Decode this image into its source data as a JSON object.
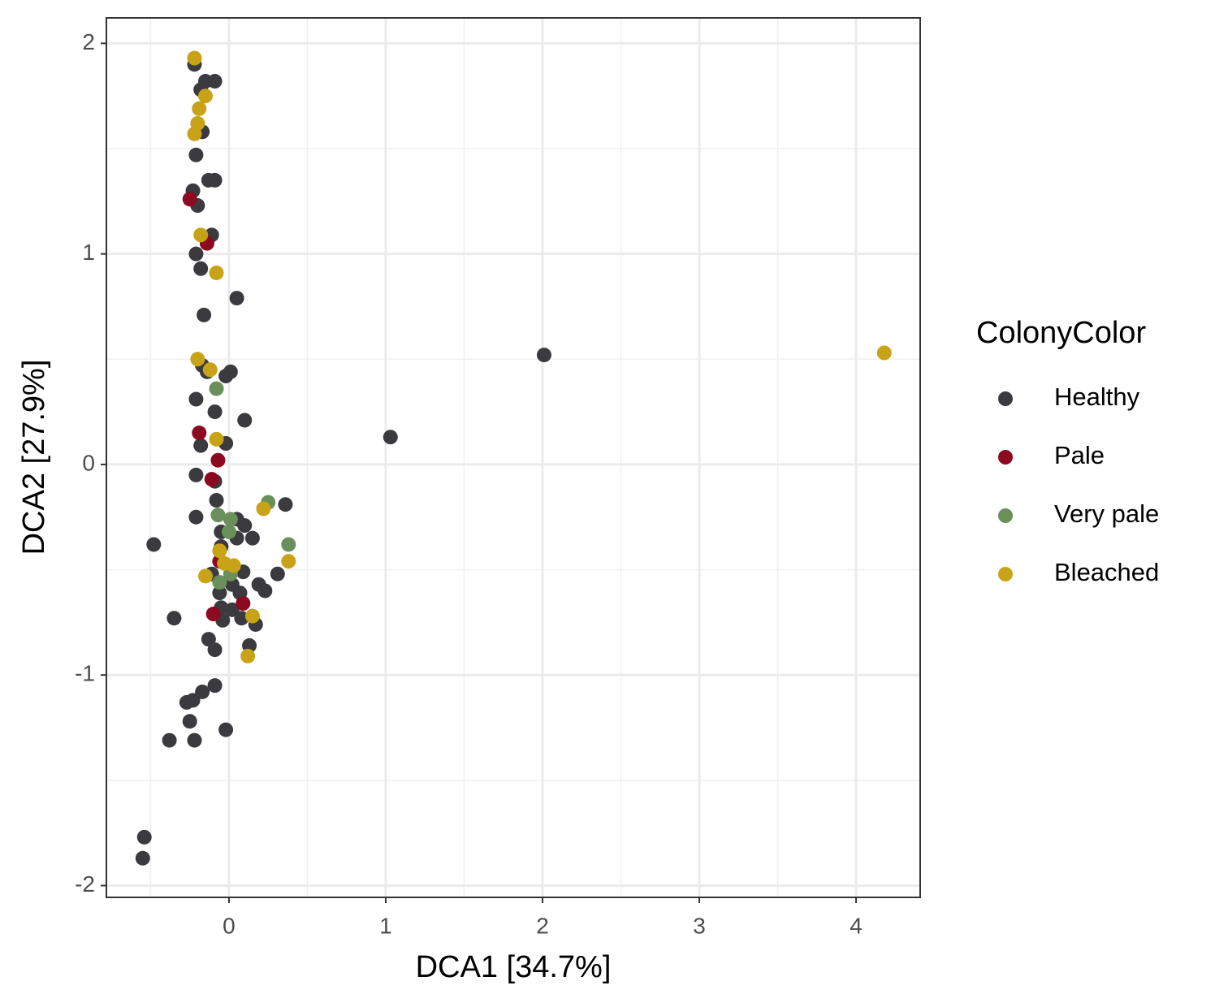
{
  "chart_data": {
    "type": "scatter",
    "x_label": "DCA1   [34.7%]",
    "y_label": "DCA2   [27.9%]",
    "legend_title": "ColonyColor",
    "legend_position": "right",
    "grid": true,
    "xlim": [
      -0.782,
      4.409
    ],
    "ylim": [
      -2.056,
      2.121
    ],
    "xticks": [
      0,
      1,
      2,
      3,
      4
    ],
    "yticks": [
      -2,
      -1,
      0,
      1,
      2
    ],
    "series": [
      {
        "name": "Healthy",
        "color": "#3a3a3f",
        "x": [
          -0.22,
          -0.15,
          -0.09,
          -0.18,
          -0.17,
          -0.21,
          -0.23,
          -0.2,
          -0.13,
          -0.09,
          -0.11,
          -0.21,
          -0.18,
          0.05,
          -0.16,
          -0.17,
          -0.14,
          0.01,
          -0.02,
          -0.21,
          -0.09,
          0.1,
          -0.18,
          -0.02,
          -0.21,
          -0.09,
          -0.08,
          -0.21,
          0.36,
          0.05,
          -0.05,
          0.1,
          0.05,
          0.15,
          -0.05,
          -0.48,
          0.09,
          0.31,
          0.19,
          0.23,
          -0.11,
          -0.06,
          0.02,
          0.07,
          -0.05,
          -0.04,
          0.02,
          0.08,
          0.17,
          -0.35,
          -0.13,
          -0.09,
          0.13,
          -0.09,
          -0.17,
          -0.23,
          -0.27,
          -0.25,
          -0.02,
          -0.38,
          -0.22,
          -0.54,
          -0.55,
          2.01,
          1.03
        ],
        "y": [
          1.9,
          1.82,
          1.82,
          1.78,
          1.58,
          1.47,
          1.3,
          1.23,
          1.35,
          1.35,
          1.09,
          1.0,
          0.93,
          0.79,
          0.71,
          0.47,
          0.44,
          0.44,
          0.42,
          0.31,
          0.25,
          0.21,
          0.09,
          0.1,
          -0.05,
          -0.08,
          -0.17,
          -0.25,
          -0.19,
          -0.26,
          -0.32,
          -0.29,
          -0.35,
          -0.35,
          -0.39,
          -0.38,
          -0.51,
          -0.52,
          -0.57,
          -0.6,
          -0.52,
          -0.61,
          -0.57,
          -0.61,
          -0.68,
          -0.74,
          -0.69,
          -0.73,
          -0.76,
          -0.73,
          -0.83,
          -0.88,
          -0.86,
          -1.05,
          -1.08,
          -1.12,
          -1.13,
          -1.22,
          -1.26,
          -1.31,
          -1.31,
          -1.77,
          -1.87,
          0.52,
          0.13
        ]
      },
      {
        "name": "Pale",
        "color": "#8b0a1f",
        "x": [
          -0.25,
          -0.14,
          -0.19,
          -0.07,
          -0.11,
          -0.06,
          -0.1,
          0.09
        ],
        "y": [
          1.26,
          1.05,
          0.15,
          0.02,
          -0.07,
          -0.46,
          -0.71,
          -0.66
        ]
      },
      {
        "name": "Very pale",
        "color": "#6b8f5a",
        "x": [
          -0.08,
          0.25,
          0.38,
          -0.07,
          0.01,
          0,
          0.01,
          -0.06
        ],
        "y": [
          0.36,
          -0.18,
          -0.38,
          -0.24,
          -0.26,
          -0.32,
          -0.52,
          -0.56
        ]
      },
      {
        "name": "Bleached",
        "color": "#c9a317",
        "x": [
          -0.22,
          -0.15,
          -0.19,
          -0.2,
          -0.22,
          -0.18,
          -0.08,
          -0.2,
          -0.12,
          -0.08,
          0.22,
          0.38,
          -0.06,
          -0.03,
          0.03,
          -0.15,
          0.15,
          0.12,
          4.18
        ],
        "y": [
          1.93,
          1.75,
          1.69,
          1.62,
          1.57,
          1.09,
          0.91,
          0.5,
          0.45,
          0.12,
          -0.21,
          -0.46,
          -0.41,
          -0.47,
          -0.48,
          -0.53,
          -0.72,
          -0.91,
          0.53
        ]
      }
    ]
  }
}
